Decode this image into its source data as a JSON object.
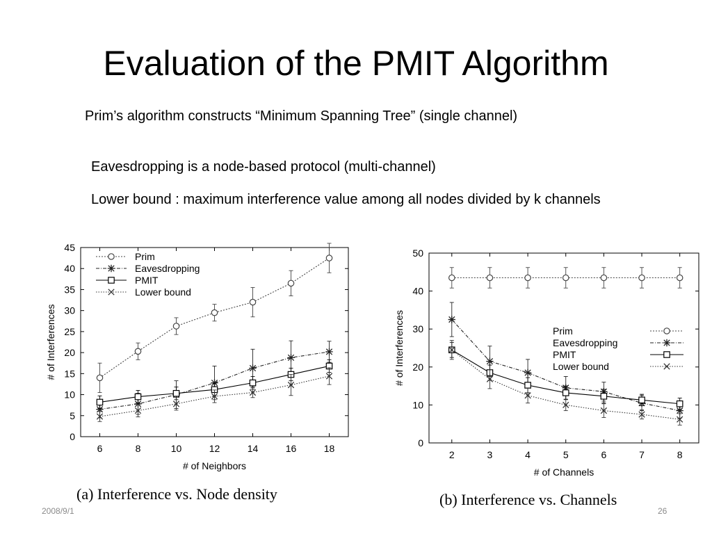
{
  "slide": {
    "title": "Evaluation of the PMIT Algorithm",
    "bullets": [
      "Prim’s algorithm constructs “Minimum Spanning Tree”  (single channel)",
      "Eavesdropping is a node-based protocol  (multi-channel)",
      "Lower bound : maximum interference value among all nodes divided by k channels"
    ],
    "footer_date": "2008/9/1",
    "page_number": "26"
  },
  "chart_data": [
    {
      "type": "line",
      "caption": "(a)  Interference vs. Node density",
      "xlabel": "# of Neighbors",
      "ylabel": "# of Interferences",
      "x": [
        6,
        8,
        10,
        12,
        14,
        16,
        18
      ],
      "xlim": [
        5,
        19
      ],
      "ylim": [
        0,
        45
      ],
      "yticks": [
        0,
        5,
        10,
        15,
        20,
        25,
        30,
        35,
        40,
        45
      ],
      "xticks": [
        6,
        8,
        10,
        12,
        14,
        16,
        18
      ],
      "legend_position": "top-left",
      "series": [
        {
          "name": "Prim",
          "marker": "circle",
          "dash": "2,2",
          "values": [
            14,
            20.3,
            26.3,
            29.5,
            32,
            36.5,
            42.5
          ],
          "err": [
            3.5,
            2,
            2,
            2,
            3.5,
            3,
            3.5
          ]
        },
        {
          "name": "Eavesdropping",
          "marker": "star",
          "dash": "5,2,1,2",
          "values": [
            6.5,
            7.8,
            10,
            12.8,
            16.3,
            18.8,
            20.2
          ],
          "err": [
            2,
            2.5,
            3.3,
            4,
            4.5,
            4,
            2.5
          ]
        },
        {
          "name": "PMIT",
          "marker": "square",
          "dash": "",
          "values": [
            8.2,
            9.5,
            10.3,
            11.2,
            12.8,
            14.8,
            16.8
          ],
          "err": [
            1.5,
            1.5,
            1.5,
            1.5,
            1.5,
            1.5,
            1.5
          ]
        },
        {
          "name": "Lower bound",
          "marker": "x",
          "dash": "1.5,2",
          "values": [
            4.8,
            6.2,
            7.8,
            9.6,
            10.5,
            12.3,
            14.4
          ],
          "err": [
            1.2,
            1.5,
            1.5,
            1.5,
            1.2,
            2.5,
            2
          ]
        }
      ]
    },
    {
      "type": "line",
      "caption": "(b)  Interference vs. Channels",
      "xlabel": "# of Channels",
      "ylabel": "# of Interferences",
      "x": [
        2,
        3,
        4,
        5,
        6,
        7,
        8
      ],
      "xlim": [
        1.4,
        8.5
      ],
      "ylim": [
        0,
        50
      ],
      "yticks": [
        0,
        10,
        20,
        30,
        40,
        50
      ],
      "xticks": [
        2,
        3,
        4,
        5,
        6,
        7,
        8
      ],
      "legend_position": "center-right",
      "series": [
        {
          "name": "Prim",
          "marker": "circle",
          "dash": "2,2",
          "values": [
            43.5,
            43.5,
            43.5,
            43.5,
            43.5,
            43.5,
            43.5
          ],
          "err": [
            2.7,
            2.7,
            2.7,
            2.7,
            2.7,
            2.7,
            2.7
          ]
        },
        {
          "name": "Eavesdropping",
          "marker": "star",
          "dash": "5,2,1,2",
          "values": [
            32.5,
            21.5,
            18.5,
            14.5,
            13.5,
            10.5,
            8.5
          ],
          "err": [
            4.5,
            4,
            3.5,
            3,
            2.5,
            2,
            2
          ]
        },
        {
          "name": "PMIT",
          "marker": "square",
          "dash": "",
          "values": [
            24.5,
            18.5,
            15.2,
            13.2,
            12.3,
            11.3,
            10.3
          ],
          "err": [
            2,
            2,
            2,
            1.8,
            1.8,
            1.5,
            1.5
          ]
        },
        {
          "name": "Lower bound",
          "marker": "x",
          "dash": "1.5,2",
          "values": [
            24.5,
            16.8,
            12.5,
            10,
            8.5,
            7.5,
            6.2
          ],
          "err": [
            2.5,
            2.5,
            2,
            1.5,
            1.8,
            1.2,
            1.5
          ]
        }
      ]
    }
  ],
  "colors": {
    "text": "#000000",
    "footer": "#8a8a8a",
    "series": [
      "#444444",
      "#222222",
      "#000000",
      "#333333"
    ]
  }
}
